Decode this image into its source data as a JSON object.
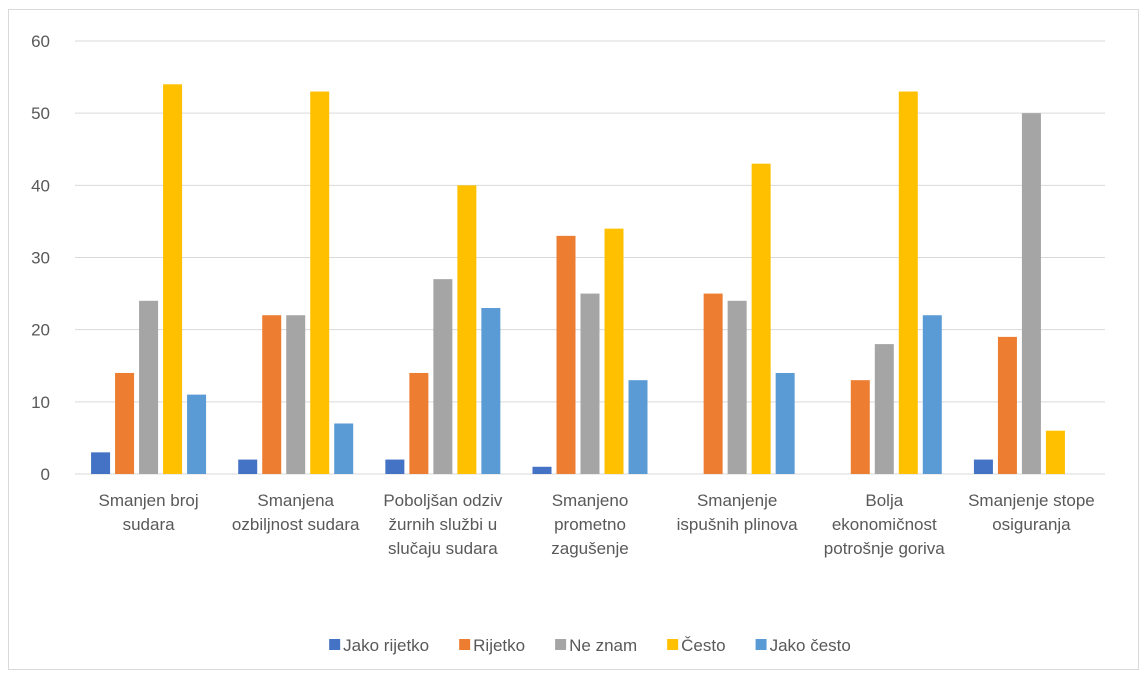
{
  "chart_data": {
    "type": "bar",
    "categories": [
      "Smanjen broj sudara",
      "Smanjena ozbiljnost sudara",
      "Poboljšan odziv žurnih službi u slučaju sudara",
      "Smanjeno prometno zagušenje",
      "Smanjenje ispušnih plinova",
      "Bolja ekonomičnost potrošnje goriva",
      "Smanjenje stope osiguranja"
    ],
    "series": [
      {
        "name": "Jako rijetko",
        "color": "#4472c4",
        "values": [
          3,
          2,
          2,
          1,
          0,
          0,
          2
        ]
      },
      {
        "name": "Rijetko",
        "color": "#ed7d31",
        "values": [
          14,
          22,
          14,
          33,
          25,
          13,
          19
        ]
      },
      {
        "name": "Ne znam",
        "color": "#a5a5a5",
        "values": [
          24,
          22,
          27,
          25,
          24,
          18,
          50
        ]
      },
      {
        "name": "Često",
        "color": "#ffc000",
        "values": [
          54,
          53,
          40,
          34,
          43,
          53,
          6
        ]
      },
      {
        "name": "Jako često",
        "color": "#5b9bd5",
        "values": [
          11,
          7,
          23,
          13,
          14,
          22,
          0
        ]
      }
    ],
    "ylim": [
      0,
      60
    ],
    "yticks": [
      0,
      10,
      20,
      30,
      40,
      50,
      60
    ],
    "grid": true,
    "legend": "bottom"
  }
}
